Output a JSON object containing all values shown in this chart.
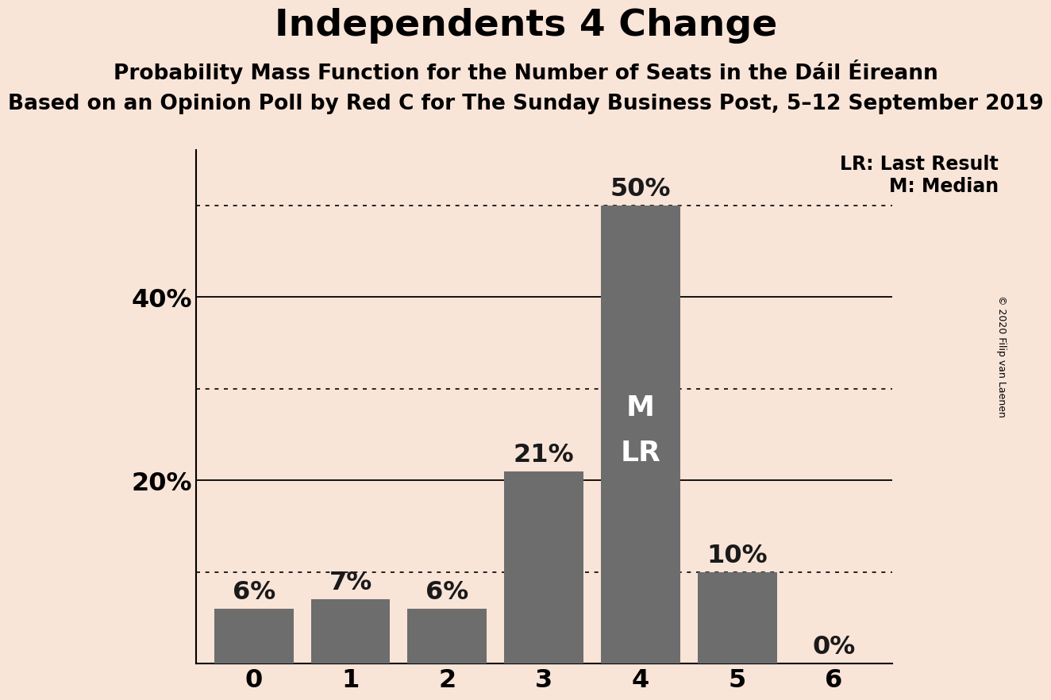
{
  "title": "Independents 4 Change",
  "subtitle1": "Probability Mass Function for the Number of Seats in the Dáil Éireann",
  "subtitle2": "Based on an Opinion Poll by Red C for The Sunday Business Post, 5–12 September 2019",
  "copyright": "© 2020 Filip van Laenen",
  "categories": [
    0,
    1,
    2,
    3,
    4,
    5,
    6
  ],
  "values": [
    6,
    7,
    6,
    21,
    50,
    10,
    0
  ],
  "bar_color": "#6d6d6d",
  "background_color": "#f9e4d8",
  "title_fontsize": 34,
  "subtitle1_fontsize": 19,
  "subtitle2_fontsize": 19,
  "tick_fontsize": 23,
  "solid_gridlines": [
    20,
    40
  ],
  "dotted_gridlines": [
    10,
    30,
    50
  ],
  "legend_line1": "LR: Last Result",
  "legend_line2": "M: Median",
  "legend_fontsize": 17,
  "median_seat": 4,
  "last_result_seat": 4,
  "annotation_color": "white",
  "annotation_fontsize": 26,
  "bar_label_fontsize": 23,
  "bar_label_color": "#1a1a1a",
  "ylim_max": 56,
  "copyright_fontsize": 9
}
